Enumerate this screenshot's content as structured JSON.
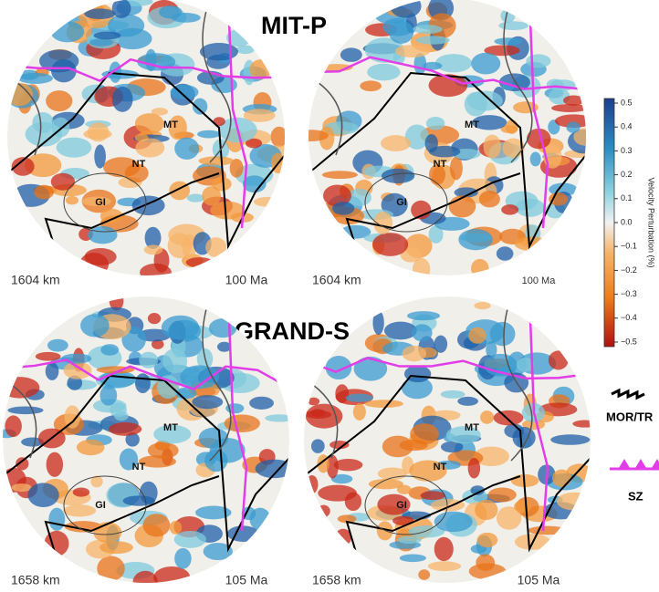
{
  "figure": {
    "rows": [
      {
        "title": "MIT-P",
        "maps": [
          {
            "depth": "1604 km",
            "age": "100 Ma",
            "labels": [
              "MT",
              "NT",
              "GI"
            ]
          },
          {
            "depth": "1604 km",
            "age": "100 Ma",
            "labels": [
              "MT",
              "NT",
              "GI"
            ]
          }
        ]
      },
      {
        "title": "GRAND-S",
        "maps": [
          {
            "depth": "1658 km",
            "age": "105 Ma",
            "labels": [
              "MT",
              "NT",
              "GI"
            ]
          },
          {
            "depth": "1658 km",
            "age": "105 Ma",
            "labels": [
              "MT",
              "NT",
              "GI"
            ]
          }
        ]
      }
    ],
    "colorbar": {
      "label": "Velocity Perturbation (%)",
      "lim": [
        -0.5,
        0.5
      ],
      "ticks": [
        0.5,
        0.4,
        0.3,
        0.2,
        0.1,
        {
          "value": 0,
          "label": "0.0"
        },
        {
          "value": -0.1,
          "label": "−0.1"
        },
        {
          "value": -0.2,
          "label": "−0.2"
        },
        {
          "value": -0.3,
          "label": "−0.3"
        },
        {
          "value": -0.4,
          "label": "−0.4"
        },
        {
          "value": -0.5,
          "label": "−0.5"
        }
      ]
    },
    "legend": [
      {
        "label": "MOR/TR"
      },
      {
        "label": "SZ"
      }
    ]
  }
}
